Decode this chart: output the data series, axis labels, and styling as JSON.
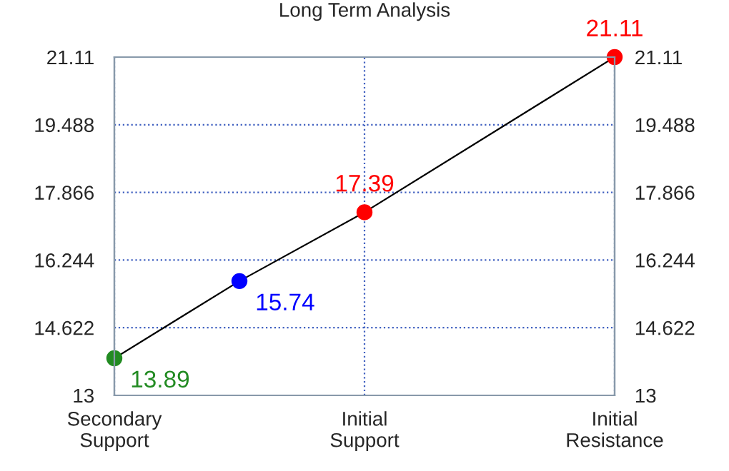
{
  "chart_data": {
    "type": "line",
    "title": "Long Term Analysis",
    "categories": [
      "Secondary\nSupport",
      null,
      "Initial\nSupport",
      null,
      "Initial\nResistance"
    ],
    "series": [
      {
        "color": "#000000",
        "colors": [
          "#228b22",
          "#0000ff",
          "#ff0000",
          null,
          "#ff0000"
        ],
        "values": [
          13.89,
          15.74,
          17.39,
          null,
          21.11
        ]
      }
    ],
    "ylim": [
      13,
      21.11
    ],
    "yticks": [
      13,
      14.622,
      16.244,
      17.866,
      19.488,
      21.11
    ],
    "y2lim": [
      13,
      21.11
    ],
    "y2ticks": [
      13,
      14.622,
      16.244,
      17.866,
      19.488,
      21.11
    ],
    "grid": true,
    "marker": "circle",
    "line_style": "solid",
    "data_labels": true
  }
}
